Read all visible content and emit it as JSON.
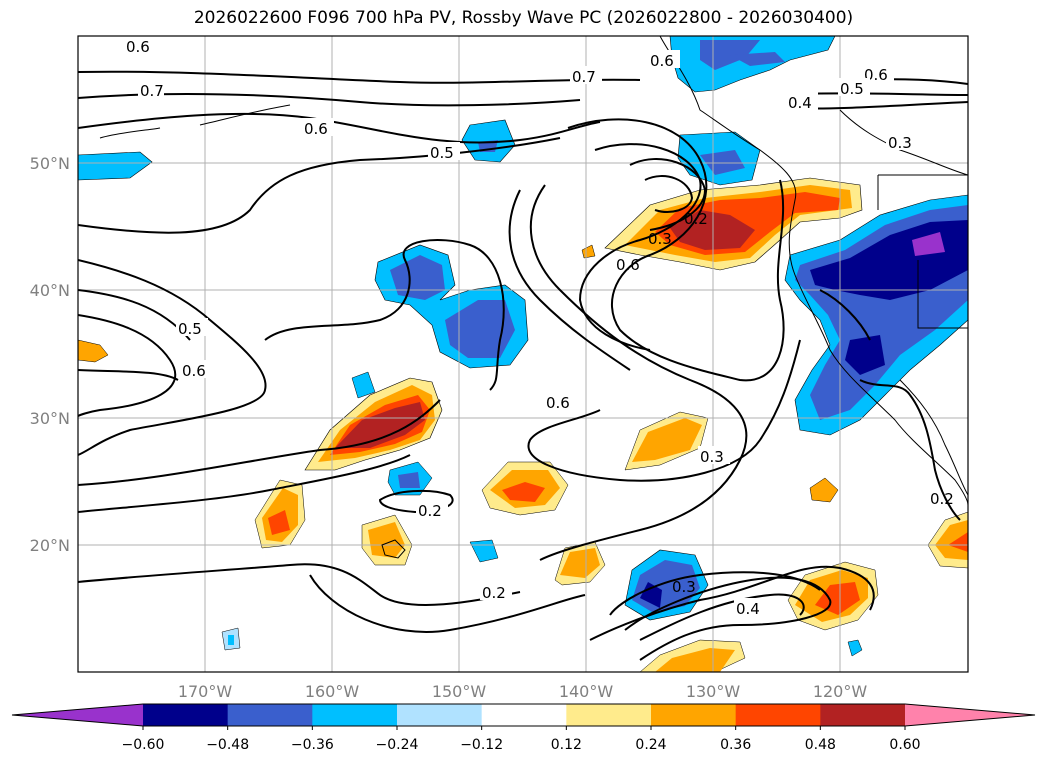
{
  "title": "2026022600 F096 700 hPa PV, Rossby Wave PC (2026022800 - 2026030400)",
  "map": {
    "lon_range": [
      -180,
      -110
    ],
    "lat_range": [
      10,
      60
    ],
    "lon_ticks": [
      "170°W",
      "160°W",
      "150°W",
      "140°W",
      "130°W",
      "120°W"
    ],
    "lat_ticks": [
      "50°N",
      "40°N",
      "30°N",
      "20°N"
    ]
  },
  "contour_labels": [
    "0.6",
    "0.7",
    "0.6",
    "0.7",
    "0.5",
    "0.6",
    "0.6",
    "0.5",
    "0.4",
    "0.3",
    "0.2",
    "0.3",
    "0.6",
    "0.5",
    "0.6",
    "0.6",
    "0.3",
    "0.2",
    "0.2",
    "0.3",
    "0.4",
    "0.2"
  ],
  "colorbar": {
    "ticks": [
      "−0.60",
      "−0.48",
      "−0.36",
      "−0.24",
      "−0.12",
      "0.12",
      "0.24",
      "0.36",
      "0.48",
      "0.60"
    ],
    "colors": [
      "#9932cc",
      "#00008b",
      "#3a5fcd",
      "#00bfff",
      "#b0e2ff",
      "#ffffff",
      "#ffeb8c",
      "#ffa500",
      "#ff4500",
      "#b22222",
      "#ff82ab"
    ]
  }
}
